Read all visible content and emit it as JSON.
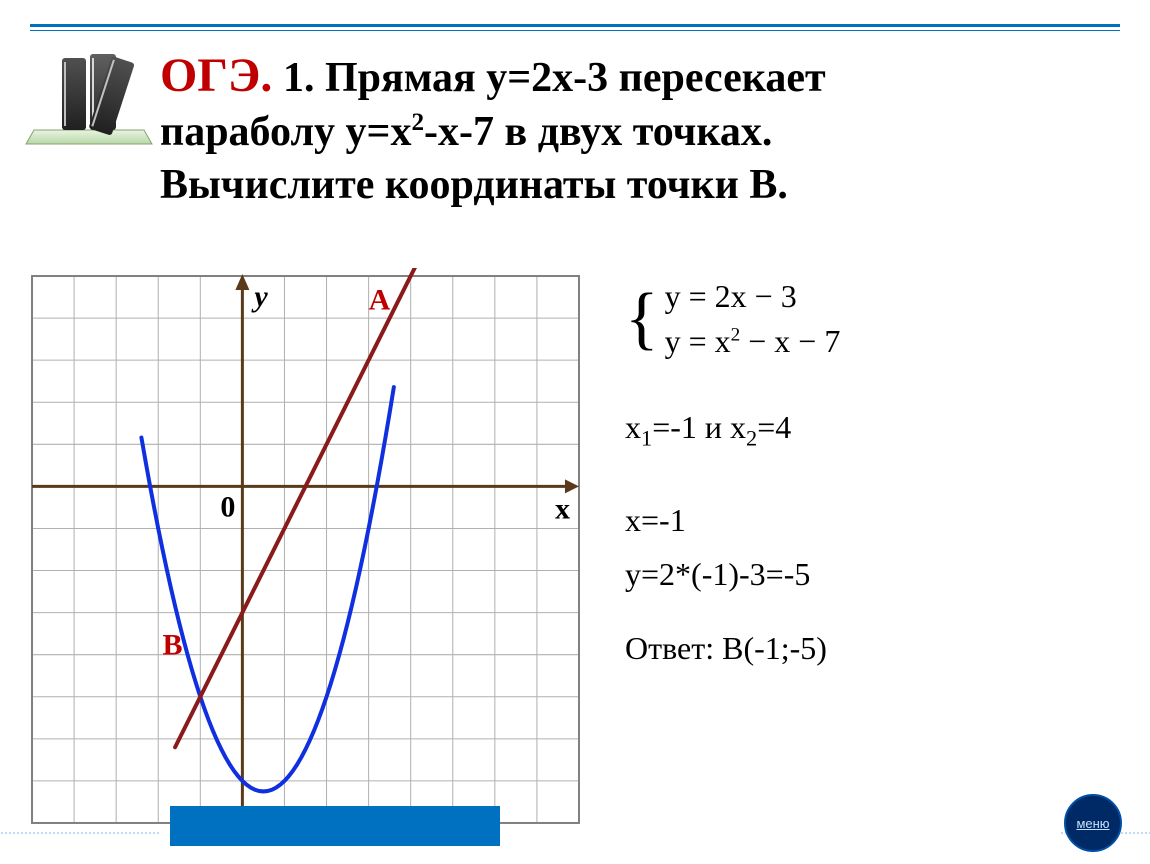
{
  "heading": {
    "oge": "ОГЭ.",
    "line1_rest": "  1. Прямая y=2х-3 пересекает",
    "line2": "параболу   y=х",
    "line2_sup": "2",
    "line2_rest": "-х-7 в двух точках.",
    "line3": "Вычислите координаты точки В."
  },
  "system": {
    "eq1": "y = 2x − 3",
    "eq2_a": "y = x",
    "eq2_sup": "2",
    "eq2_b": " − x − 7"
  },
  "roots": {
    "x1_label": "x",
    "x1_sub": "1",
    "x1_val": "=-1 и x",
    "x2_sub": "2",
    "x2_val": "=4"
  },
  "calc": {
    "xline": "x=-1",
    "yline": "y=2*(-1)-3=-5"
  },
  "answer": {
    "label": "Ответ:  B(-1;-5)"
  },
  "menu": {
    "label": "меню"
  },
  "chart": {
    "cell": 42,
    "cols": 13,
    "rows": 13,
    "originCol": 5,
    "originRow": 5,
    "xlim": [
      -5,
      8
    ],
    "ylim": [
      -8,
      5
    ],
    "background": "#ffffff",
    "grid_color": "#b0b0b0",
    "grid_width": 1,
    "border_color": "#808080",
    "axis_color": "#5a3a1a",
    "axis_width": 3,
    "parabola": {
      "color": "#1030e0",
      "width": 4,
      "fn": "x*x - x - 7",
      "xfrom": -2.4,
      "xto": 3.6,
      "step": 0.1
    },
    "line": {
      "color": "#8b1a1a",
      "width": 4,
      "fn": "2*x - 3",
      "x1": -1.6,
      "x2": 4.6
    },
    "labels": {
      "y": "у",
      "x": "x",
      "zero": "0",
      "A": "А",
      "B": "В",
      "label_color": "#000000",
      "AB_color": "#c00000",
      "font_size": 30
    }
  }
}
